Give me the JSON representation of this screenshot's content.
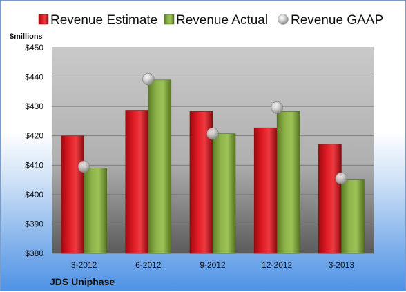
{
  "chart_data": {
    "type": "bar",
    "categories": [
      "3-2012",
      "6-2012",
      "9-2012",
      "12-2012",
      "3-2013"
    ],
    "series": [
      {
        "name": "Revenue Estimate",
        "values": [
          420,
          428.5,
          428.3,
          422.7,
          417.2
        ],
        "color": "#d8121c"
      },
      {
        "name": "Revenue Actual",
        "values": [
          409,
          439,
          420.7,
          428.3,
          405
        ],
        "color": "#7fa33c"
      },
      {
        "name": "Revenue GAAP",
        "values": [
          409.5,
          439.3,
          420.7,
          429.6,
          405.5
        ],
        "color": "#c8c8c8",
        "marker": "sphere"
      }
    ],
    "ylim": [
      380,
      450
    ],
    "ytick_labels": [
      "$380",
      "$390",
      "$400",
      "$410",
      "$420",
      "$430",
      "$440",
      "$450"
    ],
    "ylabel": "$millions",
    "xlabel": "",
    "grid": true,
    "legend_position": "top"
  },
  "company": "JDS Uniphase"
}
